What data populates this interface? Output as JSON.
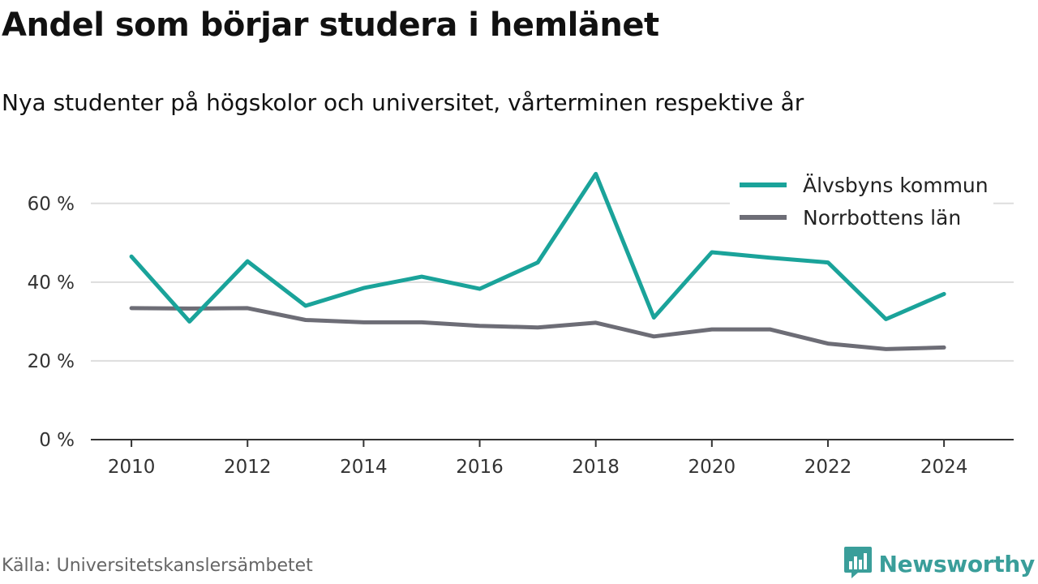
{
  "header": {
    "title": "Andel som börjar studera i hemlänet",
    "subtitle": "Nya studenter på högskolor och universitet, vårterminen respektive år"
  },
  "footer": {
    "source": "Källa: Universitetskanslersämbetet",
    "brand": "Newsworthy",
    "brand_icon": "bar-chart-speech-bubble-icon"
  },
  "colors": {
    "series_alvsbyn": "#1aa39a",
    "series_norrbotten": "#6d6d76",
    "grid": "#dddddd",
    "axis": "#333333",
    "brand": "#3a9e9a"
  },
  "chart_data": {
    "type": "line",
    "title": "Andel som börjar studera i hemlänet",
    "subtitle": "Nya studenter på högskolor och universitet, vårterminen respektive år",
    "xlabel": "",
    "ylabel": "",
    "x": [
      2010,
      2011,
      2012,
      2013,
      2014,
      2015,
      2016,
      2017,
      2018,
      2019,
      2020,
      2021,
      2022,
      2023,
      2024
    ],
    "xticks": [
      2010,
      2012,
      2014,
      2016,
      2018,
      2020,
      2022,
      2024
    ],
    "xtick_labels": [
      "2010",
      "2012",
      "2014",
      "2016",
      "2018",
      "2020",
      "2022",
      "2024"
    ],
    "xlim": [
      2009.3,
      2025.2
    ],
    "yticks": [
      0,
      20,
      40,
      60
    ],
    "ytick_labels": [
      "0 %",
      "20 %",
      "40 %",
      "60 %"
    ],
    "ylim": [
      0,
      75
    ],
    "grid": true,
    "legend": "top-right",
    "series": [
      {
        "name": "Älvsbyns kommun",
        "color": "#1aa39a",
        "values": [
          46.5,
          30.0,
          45.3,
          34.0,
          38.5,
          41.4,
          38.3,
          45.0,
          67.5,
          31.0,
          47.6,
          46.2,
          45.0,
          30.6,
          37.0
        ]
      },
      {
        "name": "Norrbottens län",
        "color": "#6d6d76",
        "values": [
          33.4,
          33.3,
          33.4,
          30.4,
          29.8,
          29.8,
          28.9,
          28.5,
          29.7,
          26.2,
          28.0,
          28.0,
          24.4,
          23.0,
          23.4
        ]
      }
    ]
  }
}
